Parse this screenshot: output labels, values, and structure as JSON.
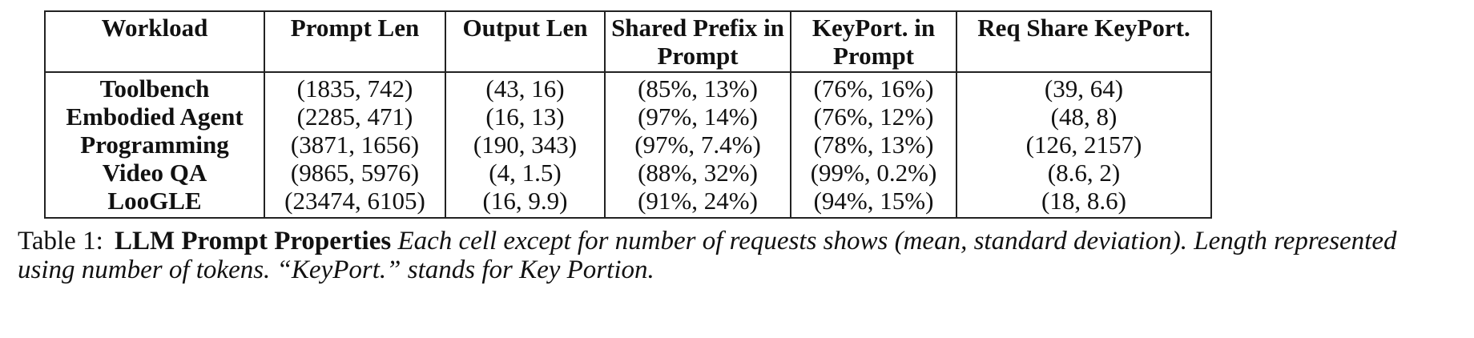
{
  "table": {
    "headers": [
      "Workload",
      "Prompt Len",
      "Output Len",
      "Shared Prefix in Prompt",
      "KeyPort. in Prompt",
      "Req Share KeyPort."
    ],
    "rows": [
      [
        "Toolbench",
        "(1835, 742)",
        "(43, 16)",
        "(85%, 13%)",
        "(76%, 16%)",
        "(39, 64)"
      ],
      [
        "Embodied Agent",
        "(2285, 471)",
        "(16, 13)",
        "(97%, 14%)",
        "(76%, 12%)",
        "(48, 8)"
      ],
      [
        "Programming",
        "(3871, 1656)",
        "(190, 343)",
        "(97%, 7.4%)",
        "(78%, 13%)",
        "(126, 2157)"
      ],
      [
        "Video QA",
        "(9865, 5976)",
        "(4, 1.5)",
        "(88%, 32%)",
        "(99%, 0.2%)",
        "(8.6, 2)"
      ],
      [
        "LooGLE",
        "(23474, 6105)",
        "(16, 9.9)",
        "(91%, 24%)",
        "(94%, 15%)",
        "(18, 8.6)"
      ]
    ]
  },
  "caption": {
    "number": "Table 1:",
    "title": "LLM Prompt Properties",
    "text": "Each cell except for number of requests shows (mean, standard deviation). Length represented using number of tokens. “KeyPort.” stands for Key Portion."
  }
}
